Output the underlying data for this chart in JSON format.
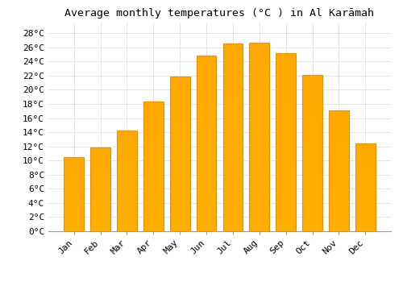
{
  "title": "Average monthly temperatures (°C ) in Al Karāmah",
  "months": [
    "Jan",
    "Feb",
    "Mar",
    "Apr",
    "May",
    "Jun",
    "Jul",
    "Aug",
    "Sep",
    "Oct",
    "Nov",
    "Dec"
  ],
  "values": [
    10.5,
    11.8,
    14.2,
    18.3,
    21.9,
    24.8,
    26.5,
    26.7,
    25.2,
    22.1,
    17.1,
    12.4
  ],
  "bar_color_main": "#FFAA00",
  "bar_color_edge": "#E8900A",
  "background_color": "#FFFFFF",
  "grid_color": "#E0E0E0",
  "y_ticks": [
    0,
    2,
    4,
    6,
    8,
    10,
    12,
    14,
    16,
    18,
    20,
    22,
    24,
    26,
    28
  ],
  "ylim": [
    0,
    29.5
  ],
  "title_fontsize": 9.5,
  "tick_fontsize": 8,
  "font_family": "monospace"
}
